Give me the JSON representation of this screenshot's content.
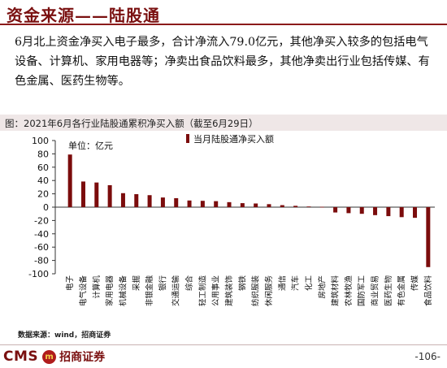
{
  "header": {
    "title": "资金来源——陆股通"
  },
  "summary": "6月北上资金净买入电子最多，合计净流入79.0亿元，其他净买入较多的包括电气设备、计算机、家用电器等；净卖出食品饮料最多，其他净卖出行业包括传媒、有色金属、医药生物等。",
  "figure": {
    "caption": "图：2021年6月各行业陆股通累积净买入额（截至6月29日）"
  },
  "source": "数据来源：wind，招商证券",
  "footer": {
    "logo_text": "CMS",
    "logo_badge": "m",
    "company": "招商证券",
    "page": "-106-"
  },
  "chart_data": {
    "type": "bar",
    "unit_label": "单位：亿元",
    "legend": "当月陆股通净买入额",
    "legend_position": "top",
    "color": "#7b0c0c",
    "ylim": [
      -100,
      100
    ],
    "yticks": [
      -100,
      -80,
      -60,
      -40,
      -20,
      0,
      20,
      40,
      60,
      80,
      100
    ],
    "categories": [
      "电子",
      "电气设备",
      "计算机",
      "家用电器",
      "机械设备",
      "采掘",
      "非银金融",
      "银行",
      "交通运输",
      "综合",
      "轻工制造",
      "公用事业",
      "建筑装饰",
      "钢铁",
      "纺织服装",
      "休闲服务",
      "通信",
      "汽车",
      "化工",
      "房地产",
      "建筑材料",
      "农林牧渔",
      "国防军工",
      "商业贸易",
      "医药生物",
      "有色金属",
      "传媒",
      "食品饮料"
    ],
    "values": [
      79.0,
      38.5,
      37.0,
      33.0,
      21.0,
      19.5,
      18.0,
      14.5,
      13.5,
      10.0,
      9.5,
      9.0,
      7.5,
      6.0,
      5.5,
      4.5,
      3.0,
      2.0,
      1.0,
      0.5,
      -8.0,
      -9.0,
      -10.0,
      -12.0,
      -13.5,
      -15.0,
      -16.0,
      -90.0
    ]
  }
}
